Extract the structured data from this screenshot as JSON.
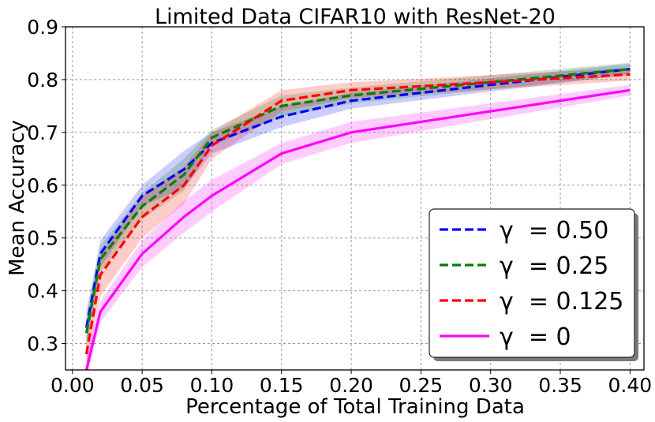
{
  "chart_data": {
    "type": "line",
    "title": "Limited Data CIFAR10 with ResNet-20",
    "xlabel": "Percentage of Total Training Data",
    "ylabel": "Mean Accuracy",
    "xlim": [
      -0.005,
      0.41
    ],
    "ylim": [
      0.25,
      0.9
    ],
    "xticks": [
      "0.00",
      "0.05",
      "0.10",
      "0.15",
      "0.20",
      "0.25",
      "0.30",
      "0.35",
      "0.40"
    ],
    "yticks": [
      "0.3",
      "0.4",
      "0.5",
      "0.6",
      "0.7",
      "0.8",
      "0.9"
    ],
    "grid": true,
    "legend_position": "lower-right",
    "x": [
      0.01,
      0.02,
      0.05,
      0.08,
      0.1,
      0.15,
      0.2,
      0.4
    ],
    "series": [
      {
        "name": "γ  = 0.50",
        "color": "#0000ff",
        "style": "dashed",
        "values": [
          0.33,
          0.47,
          0.58,
          0.63,
          0.68,
          0.73,
          0.76,
          0.82
        ],
        "band": [
          0.03,
          0.025,
          0.02,
          0.035,
          0.02,
          0.02,
          0.015,
          0.01
        ]
      },
      {
        "name": "γ  = 0.25",
        "color": "#008000",
        "style": "dashed",
        "values": [
          0.32,
          0.46,
          0.56,
          0.62,
          0.69,
          0.75,
          0.77,
          0.82
        ],
        "band": [
          0.03,
          0.025,
          0.025,
          0.03,
          0.015,
          0.02,
          0.015,
          0.012
        ]
      },
      {
        "name": "γ  = 0.125",
        "color": "#ff0000",
        "style": "dashed",
        "values": [
          0.28,
          0.43,
          0.54,
          0.6,
          0.675,
          0.76,
          0.78,
          0.81
        ],
        "band": [
          0.03,
          0.04,
          0.04,
          0.035,
          0.025,
          0.02,
          0.015,
          0.012
        ]
      },
      {
        "name": "γ  = 0",
        "color": "#ff00ff",
        "style": "solid",
        "values": [
          0.25,
          0.36,
          0.47,
          0.54,
          0.58,
          0.66,
          0.7,
          0.78
        ],
        "band": [
          0.02,
          0.02,
          0.025,
          0.03,
          0.03,
          0.02,
          0.02,
          0.01
        ]
      }
    ]
  }
}
